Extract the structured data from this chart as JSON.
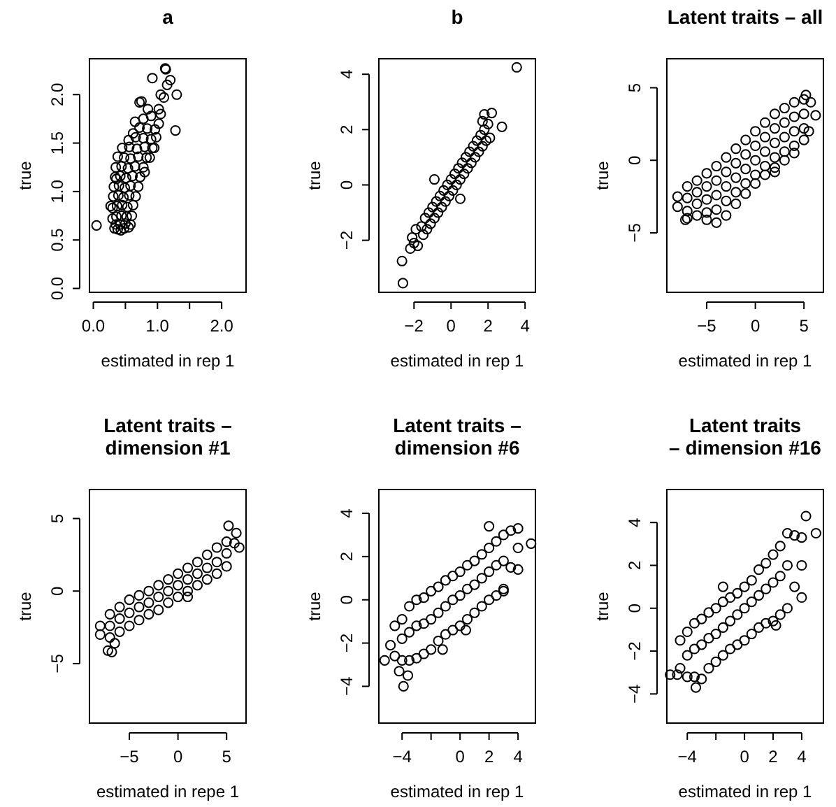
{
  "chart_data": [
    {
      "type": "scatter",
      "title": "a",
      "xlabel": "estimated in rep 1",
      "ylabel": "true",
      "marker": "circle",
      "xlim": [
        -0.06,
        2.38
      ],
      "ylim": [
        -0.04,
        2.37
      ],
      "xticks": [
        {
          "value": 0,
          "label": "0.0"
        },
        {
          "value": 0.5,
          "label": null
        },
        {
          "value": 1,
          "label": "1.0"
        },
        {
          "value": 1.5,
          "label": null
        },
        {
          "value": 2,
          "label": "2.0"
        }
      ],
      "yticks": [
        {
          "value": 0,
          "label": "0.0"
        },
        {
          "value": 0.5,
          "label": "0.5"
        },
        {
          "value": 1,
          "label": "1.0"
        },
        {
          "value": 1.5,
          "label": "1.5"
        },
        {
          "value": 2,
          "label": "2.0"
        }
      ],
      "x": [
        0.33,
        0.38,
        0.43,
        0.48,
        0.55,
        0.58,
        0.35,
        0.42,
        0.5,
        0.3,
        0.36,
        0.44,
        0.52,
        0.6,
        0.3,
        0.37,
        0.45,
        0.53,
        0.62,
        0.31,
        0.39,
        0.47,
        0.56,
        0.66,
        0.32,
        0.4,
        0.49,
        0.58,
        0.7,
        0.34,
        0.42,
        0.51,
        0.61,
        0.73,
        0.8,
        0.35,
        0.44,
        0.54,
        0.65,
        0.78,
        0.38,
        0.48,
        0.58,
        0.7,
        0.83,
        0.88,
        0.45,
        0.56,
        0.68,
        0.8,
        0.92,
        0.55,
        0.66,
        0.78,
        0.9,
        0.98,
        0.62,
        0.72,
        0.84,
        0.96,
        1.02,
        0.65,
        0.78,
        0.9,
        1.05,
        0.85,
        1.02,
        0.05,
        0.27,
        0.36,
        0.72,
        0.75,
        0.92,
        1.12,
        1.13,
        1.2,
        1.15,
        1.05,
        1.3,
        1.28,
        1.1,
        0.95
      ],
      "series": [
        {
          "color": "#000000",
          "values": [
            0.62,
            0.61,
            0.6,
            0.62,
            0.63,
            0.66,
            0.66,
            0.66,
            0.67,
            0.72,
            0.74,
            0.75,
            0.74,
            0.75,
            0.83,
            0.85,
            0.86,
            0.84,
            0.86,
            0.95,
            0.96,
            0.94,
            0.96,
            0.95,
            1.05,
            1.06,
            1.04,
            1.06,
            1.05,
            1.15,
            1.16,
            1.14,
            1.16,
            1.15,
            1.2,
            1.25,
            1.26,
            1.24,
            1.26,
            1.25,
            1.36,
            1.35,
            1.34,
            1.36,
            1.35,
            1.35,
            1.45,
            1.46,
            1.44,
            1.46,
            1.45,
            1.53,
            1.56,
            1.55,
            1.54,
            1.56,
            1.6,
            1.66,
            1.65,
            1.64,
            1.7,
            1.72,
            1.75,
            1.78,
            1.8,
            1.85,
            1.85,
            0.65,
            0.85,
            1.13,
            1.92,
            1.93,
            2.17,
            2.27,
            2.26,
            2.15,
            2.1,
            2.0,
            2.0,
            1.63,
            1.97,
            1.45
          ]
        }
      ]
    },
    {
      "type": "scatter",
      "title": "b",
      "xlabel": "estimated in rep 1",
      "ylabel": "true",
      "marker": "circle",
      "xlim": [
        -3.9,
        4.56
      ],
      "ylim": [
        -3.88,
        4.56
      ],
      "xticks": [
        -2,
        0,
        2,
        4
      ],
      "yticks": [
        -2,
        0,
        2,
        4
      ],
      "x": [
        -2.2,
        -2.1,
        -2.0,
        -1.9,
        -1.8,
        -1.6,
        -1.5,
        -1.4,
        -1.3,
        -1.2,
        -1.1,
        -1.0,
        -0.9,
        -0.8,
        -0.7,
        -0.6,
        -0.5,
        -0.4,
        -0.3,
        -0.2,
        -0.1,
        0,
        0.1,
        0.2,
        0.3,
        0.4,
        0.5,
        0.6,
        0.7,
        0.8,
        0.9,
        1.0,
        1.1,
        1.2,
        1.3,
        1.4,
        1.5,
        1.6,
        1.7,
        1.8,
        1.9,
        2.0,
        2.1,
        1.7,
        -0.9,
        0.5,
        3.55,
        -2.65,
        -2.6,
        2.75,
        2.2,
        1.8
      ],
      "series": [
        {
          "color": "#000000",
          "values": [
            -2.3,
            -1.9,
            -2.1,
            -1.6,
            -2.2,
            -1.5,
            -1.8,
            -1.2,
            -1.6,
            -1.0,
            -1.4,
            -0.8,
            -1.2,
            -0.6,
            -1.0,
            -0.4,
            -0.8,
            -0.2,
            -0.6,
            0.0,
            -0.4,
            0.2,
            -0.2,
            0.4,
            0.0,
            0.6,
            0.2,
            0.8,
            0.4,
            1.0,
            0.6,
            1.2,
            0.8,
            1.4,
            1.0,
            1.6,
            1.2,
            1.8,
            1.4,
            2.0,
            1.6,
            2.2,
            1.7,
            2.3,
            0.2,
            -0.5,
            4.25,
            -2.75,
            -3.55,
            2.1,
            2.6,
            2.55
          ]
        }
      ]
    },
    {
      "type": "scatter",
      "title": "Latent traits – all",
      "xlabel": "estimated in rep 1",
      "ylabel": "true",
      "marker": "circle",
      "xlim": [
        -9.1,
        7.0
      ],
      "ylim": [
        -9.1,
        7.0
      ],
      "xticks": [
        -5,
        0,
        5
      ],
      "yticks": [
        -5,
        0,
        5
      ],
      "x": [
        -8,
        -8,
        -7,
        -7,
        -7,
        -6,
        -6,
        -6,
        -6,
        -5,
        -5,
        -5,
        -5,
        -5,
        -4,
        -4,
        -4,
        -4,
        -4,
        -3,
        -3,
        -3,
        -3,
        -3,
        -2,
        -2,
        -2,
        -2,
        -2,
        -1,
        -1,
        -1,
        -1,
        -1,
        0,
        0,
        0,
        0,
        0,
        1,
        1,
        1,
        1,
        1,
        2,
        2,
        2,
        2,
        2,
        3,
        3,
        3,
        3,
        3,
        4,
        4,
        4,
        4,
        4,
        5,
        5,
        5,
        5,
        -7.2,
        -7,
        2,
        6.2,
        5.7,
        5.2,
        5.5
      ],
      "series": [
        {
          "color": "#000000",
          "values": [
            -2.5,
            -3.2,
            -1.8,
            -2.6,
            -3.5,
            -1.4,
            -2.2,
            -3.0,
            -3.8,
            -0.9,
            -1.8,
            -2.7,
            -3.6,
            -4.1,
            -0.4,
            -1.4,
            -2.4,
            -3.4,
            -4.3,
            0.2,
            -0.8,
            -1.8,
            -2.8,
            -3.8,
            0.8,
            -0.2,
            -1.2,
            -2.2,
            -3.0,
            1.4,
            0.4,
            -0.6,
            -1.6,
            -2.3,
            2.0,
            1.0,
            0,
            -1.0,
            -1.6,
            2.6,
            1.6,
            0.6,
            -0.4,
            -1.0,
            3.2,
            2.2,
            1.2,
            0.2,
            -0.5,
            3.6,
            2.6,
            1.6,
            0.6,
            0,
            4.0,
            3.0,
            2.0,
            1.0,
            0.5,
            4.2,
            3.2,
            2.2,
            1.4,
            -4.1,
            -4.0,
            -0.8,
            3.1,
            4.0,
            4.5,
            2.0
          ]
        }
      ]
    },
    {
      "type": "scatter",
      "title": "Latent traits –\ndimension #1",
      "xlabel": "estimated in repe 1",
      "ylabel": "true",
      "marker": "circle",
      "xlim": [
        -9.1,
        7.0
      ],
      "ylim": [
        -9.1,
        7.0
      ],
      "xticks": [
        -5,
        0,
        5
      ],
      "yticks": [
        -5,
        0,
        5
      ],
      "x": [
        -8,
        -8,
        -7,
        -7,
        -7,
        -6,
        -6,
        -6,
        -5,
        -5,
        -5,
        -4,
        -4,
        -4,
        -3,
        -3,
        -3,
        -2,
        -2,
        -2,
        -1,
        -1,
        -1,
        0,
        0,
        0,
        1,
        1,
        1,
        2,
        2,
        2,
        3,
        3,
        3,
        4,
        4,
        4,
        5,
        5,
        5,
        -7.2,
        -6.8,
        -6.5,
        5.2,
        6,
        6.3,
        5.8,
        1
      ],
      "series": [
        {
          "color": "#000000",
          "values": [
            -2.4,
            -3.0,
            -1.6,
            -2.4,
            -3.2,
            -1.1,
            -1.9,
            -2.8,
            -0.6,
            -1.5,
            -2.4,
            -0.3,
            -1.1,
            -2.0,
            0,
            -0.8,
            -1.6,
            0.4,
            -0.4,
            -1.3,
            0.8,
            0,
            -0.8,
            1.2,
            0.4,
            -0.4,
            1.6,
            0.8,
            0,
            2.0,
            1.2,
            0.4,
            2.5,
            1.6,
            0.8,
            3.0,
            2.0,
            1.2,
            3.4,
            2.6,
            1.7,
            -4.1,
            -4.2,
            -3.6,
            4.5,
            4.0,
            3.0,
            3.3,
            -0.4
          ]
        }
      ]
    },
    {
      "type": "scatter",
      "title": "Latent traits –\ndimension #6",
      "xlabel": "estimated in rep 1",
      "ylabel": "true",
      "marker": "circle",
      "xlim": [
        -5.6,
        5.2
      ],
      "ylim": [
        -5.7,
        5.1
      ],
      "xticks": [
        -4,
        {
          "value": -2,
          "label": null
        },
        0,
        2,
        4
      ],
      "yticks": [
        -4,
        -2,
        0,
        2,
        4
      ],
      "x": [
        -4.5,
        -4.5,
        -4,
        -4,
        -4,
        -3.5,
        -3.5,
        -3.5,
        -3,
        -3,
        -3,
        -2.5,
        -2.5,
        -2.5,
        -2,
        -2,
        -2,
        -1.5,
        -1.5,
        -1.5,
        -1,
        -1,
        -1,
        -0.5,
        -0.5,
        -0.5,
        0,
        0,
        0,
        0.5,
        0.5,
        0.5,
        1,
        1,
        1,
        1.5,
        1.5,
        1.5,
        2,
        2,
        2,
        2.5,
        2.5,
        2.5,
        3,
        3,
        3,
        3.5,
        3.5,
        4,
        4,
        4,
        -3.9,
        -3.6,
        -4.2,
        -5.2,
        -4.8,
        2,
        4.9,
        3,
        -1.2,
        0.4
      ],
      "series": [
        {
          "color": "#000000",
          "values": [
            -1.2,
            -2.6,
            -0.9,
            -1.8,
            -2.8,
            -0.3,
            -1.5,
            -2.8,
            0,
            -1.2,
            -2.7,
            0.1,
            -1.1,
            -2.5,
            0.4,
            -0.9,
            -2.3,
            0.6,
            -0.6,
            -1.9,
            0.9,
            -0.3,
            -1.6,
            1.1,
            0,
            -1.4,
            1.3,
            0.2,
            -1.2,
            1.6,
            0.5,
            -0.9,
            1.8,
            0.7,
            -0.6,
            2.1,
            1.0,
            -0.3,
            2.4,
            1.3,
            0,
            2.7,
            1.6,
            0.2,
            3.0,
            1.8,
            0.5,
            3.2,
            1.5,
            3.3,
            2.4,
            1.4,
            -4.0,
            -3.5,
            -3.3,
            -2.8,
            -2.1,
            3.4,
            2.6,
            0.4,
            -2.3,
            -1.4
          ]
        }
      ]
    },
    {
      "type": "scatter",
      "title": "Latent traits\n– dimension #16",
      "xlabel": "estimated in rep 1",
      "ylabel": "true",
      "marker": "circle",
      "xlim": [
        -5.43,
        5.52
      ],
      "ylim": [
        -5.36,
        5.54
      ],
      "xticks": [
        -4,
        {
          "value": -2,
          "label": null
        },
        0,
        2,
        4
      ],
      "yticks": [
        -4,
        -2,
        0,
        2,
        4
      ],
      "x": [
        -4.5,
        -4.5,
        -4,
        -4,
        -4,
        -3.5,
        -3.5,
        -3.5,
        -3,
        -3,
        -3,
        -2.5,
        -2.5,
        -2.5,
        -2,
        -2,
        -2,
        -1.5,
        -1.5,
        -1.5,
        -1,
        -1,
        -1,
        -0.5,
        -0.5,
        -0.5,
        0,
        0,
        0,
        0.5,
        0.5,
        0.5,
        1,
        1,
        1,
        1.5,
        1.5,
        1.5,
        2,
        2,
        2,
        2.5,
        2.5,
        2.5,
        3,
        3,
        3,
        3.5,
        3.5,
        4,
        4,
        4,
        4.3,
        5,
        -3.4,
        2.2,
        -1.5,
        -5.2,
        -4.7
      ],
      "series": [
        {
          "color": "#000000",
          "values": [
            -1.5,
            -2.8,
            -1.1,
            -2.2,
            -3.2,
            -0.7,
            -1.9,
            -3.2,
            -0.5,
            -1.7,
            -3.3,
            -0.2,
            -1.4,
            -2.8,
            0,
            -1.2,
            -2.5,
            0.3,
            -0.9,
            -2.2,
            0.5,
            -0.6,
            -1.9,
            0.7,
            -0.3,
            -1.7,
            1.0,
            0,
            -1.5,
            1.3,
            0.3,
            -1.2,
            1.8,
            0.6,
            -0.9,
            2.1,
            0.9,
            -0.7,
            2.5,
            1.2,
            -0.6,
            2.9,
            1.5,
            -0.3,
            3.5,
            2.0,
            0,
            3.4,
            1.0,
            3.3,
            2.0,
            0.5,
            4.3,
            3.5,
            -3.7,
            -0.8,
            1.0,
            -3.1,
            -3.1
          ]
        }
      ]
    }
  ]
}
